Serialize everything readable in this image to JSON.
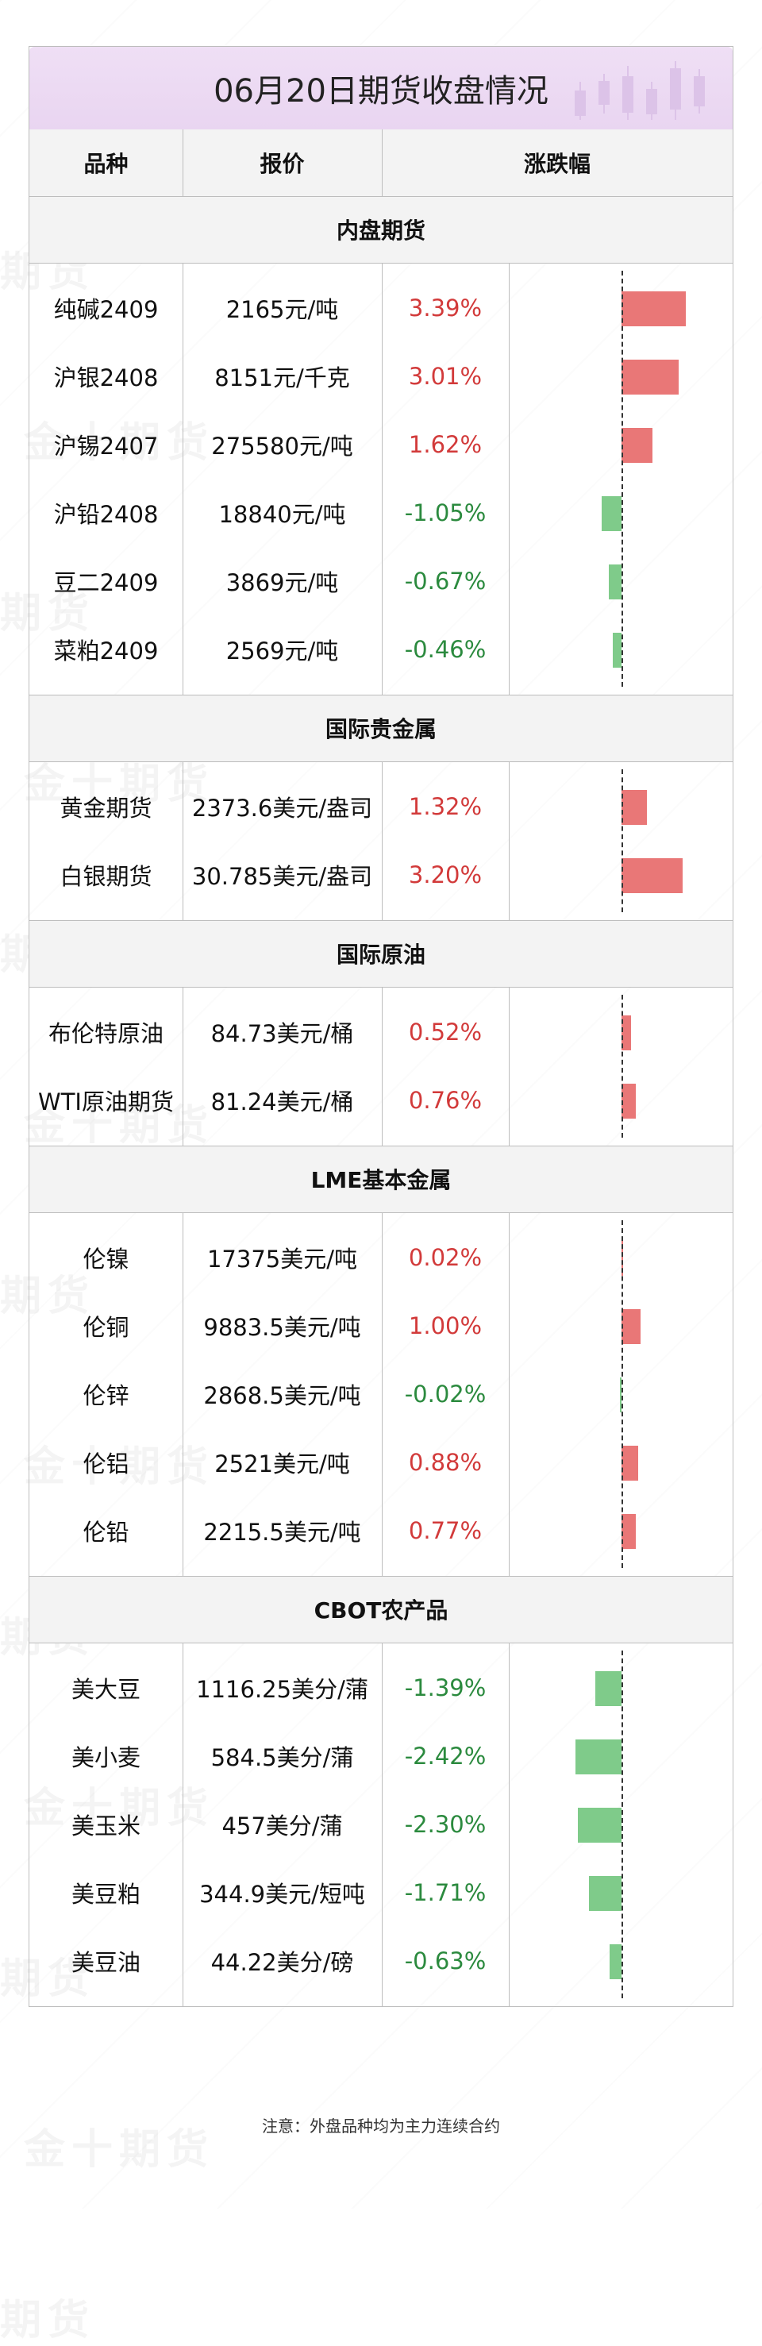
{
  "title": "06月20日期货收盘情况",
  "headers": {
    "variety": "品种",
    "price": "报价",
    "change": "涨跌幅"
  },
  "colors": {
    "up_bar": "#e97777",
    "down_bar": "#7fcb8a",
    "up_text": "#d23a3a",
    "down_text": "#2b8a3e"
  },
  "watermark": "金十期货",
  "sections": [
    {
      "name": "内盘期货",
      "rows": [
        {
          "variety": "纯碱2409",
          "price": "2165元/吨",
          "change": "3.39%",
          "value": 3.39
        },
        {
          "variety": "沪银2408",
          "price": "8151元/千克",
          "change": "3.01%",
          "value": 3.01
        },
        {
          "variety": "沪锡2407",
          "price": "275580元/吨",
          "change": "1.62%",
          "value": 1.62
        },
        {
          "variety": "沪铅2408",
          "price": "18840元/吨",
          "change": "-1.05%",
          "value": -1.05
        },
        {
          "variety": "豆二2409",
          "price": "3869元/吨",
          "change": "-0.67%",
          "value": -0.67
        },
        {
          "variety": "菜粕2409",
          "price": "2569元/吨",
          "change": "-0.46%",
          "value": -0.46
        }
      ]
    },
    {
      "name": "国际贵金属",
      "rows": [
        {
          "variety": "黄金期货",
          "price": "2373.6美元/盎司",
          "change": "1.32%",
          "value": 1.32
        },
        {
          "variety": "白银期货",
          "price": "30.785美元/盎司",
          "change": "3.20%",
          "value": 3.2
        }
      ]
    },
    {
      "name": "国际原油",
      "rows": [
        {
          "variety": "布伦特原油",
          "price": "84.73美元/桶",
          "change": "0.52%",
          "value": 0.52
        },
        {
          "variety": "WTI原油期货",
          "price": "81.24美元/桶",
          "change": "0.76%",
          "value": 0.76
        }
      ]
    },
    {
      "name": "LME基本金属",
      "rows": [
        {
          "variety": "伦镍",
          "price": "17375美元/吨",
          "change": "0.02%",
          "value": 0.02
        },
        {
          "variety": "伦铜",
          "price": "9883.5美元/吨",
          "change": "1.00%",
          "value": 1.0
        },
        {
          "variety": "伦锌",
          "price": "2868.5美元/吨",
          "change": "-0.02%",
          "value": -0.02
        },
        {
          "variety": "伦铝",
          "price": "2521美元/吨",
          "change": "0.88%",
          "value": 0.88
        },
        {
          "variety": "伦铅",
          "price": "2215.5美元/吨",
          "change": "0.77%",
          "value": 0.77
        }
      ]
    },
    {
      "name": "CBOT农产品",
      "rows": [
        {
          "variety": "美大豆",
          "price": "1116.25美分/蒲",
          "change": "-1.39%",
          "value": -1.39
        },
        {
          "variety": "美小麦",
          "price": "584.5美分/蒲",
          "change": "-2.42%",
          "value": -2.42
        },
        {
          "variety": "美玉米",
          "price": "457美分/蒲",
          "change": "-2.30%",
          "value": -2.3
        },
        {
          "variety": "美豆粕",
          "price": "344.9美元/短吨",
          "change": "-1.71%",
          "value": -1.71
        },
        {
          "variety": "美豆油",
          "price": "44.22美分/磅",
          "change": "-0.63%",
          "value": -0.63
        }
      ]
    }
  ],
  "footnote": "注意：外盘品种均为主力连续合约"
}
